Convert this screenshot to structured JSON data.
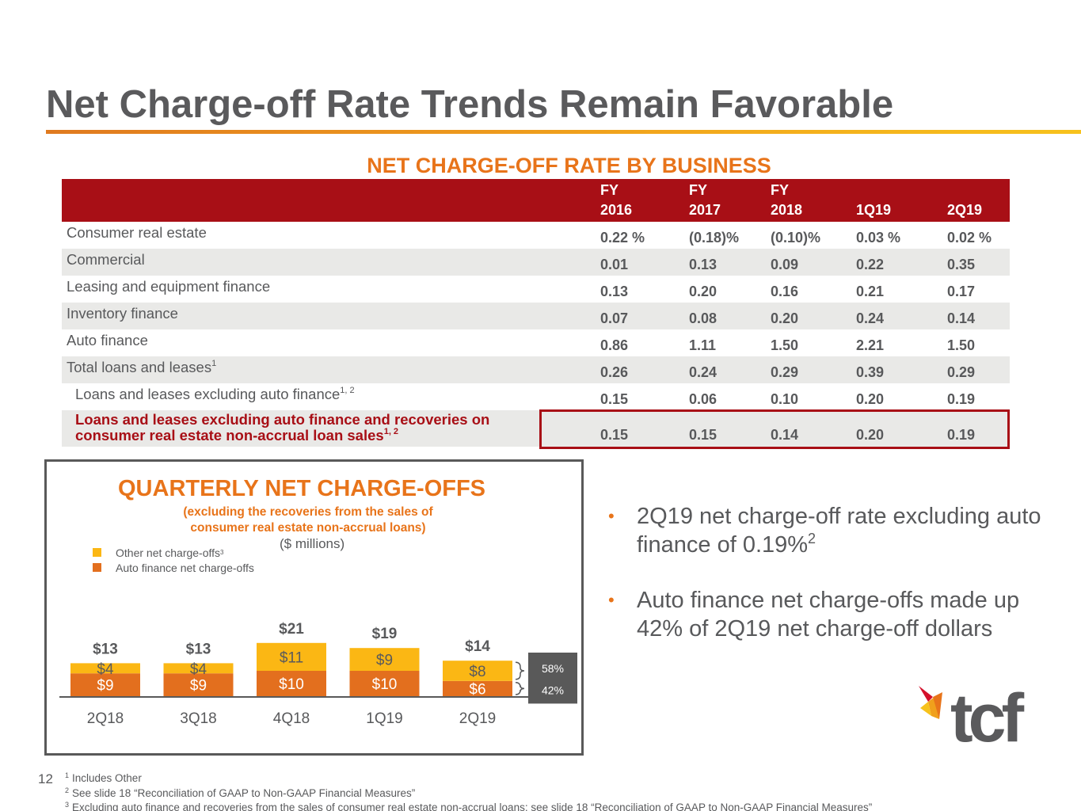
{
  "slide": {
    "title": "Net Charge-off Rate Trends Remain Favorable",
    "page_number": "12"
  },
  "table": {
    "heading": "NET CHARGE-OFF RATE BY BUSINESS",
    "columns": [
      {
        "top": "FY",
        "bottom": "2016"
      },
      {
        "top": "FY",
        "bottom": "2017"
      },
      {
        "top": "FY",
        "bottom": "2018"
      },
      {
        "top": "",
        "bottom": "1Q19"
      },
      {
        "top": "",
        "bottom": "2Q19"
      }
    ],
    "rows": [
      {
        "label": "Consumer real estate",
        "sup": "",
        "values": [
          "0.22 %",
          "(0.18)%",
          "(0.10)%",
          "0.03 %",
          "0.02 %"
        ]
      },
      {
        "label": "Commercial",
        "sup": "",
        "values": [
          "0.01",
          "0.13",
          "0.09",
          "0.22",
          "0.35"
        ]
      },
      {
        "label": "Leasing and equipment finance",
        "sup": "",
        "values": [
          "0.13",
          "0.20",
          "0.16",
          "0.21",
          "0.17"
        ]
      },
      {
        "label": "Inventory finance",
        "sup": "",
        "values": [
          "0.07",
          "0.08",
          "0.20",
          "0.24",
          "0.14"
        ]
      },
      {
        "label": "Auto finance",
        "sup": "",
        "values": [
          "0.86",
          "1.11",
          "1.50",
          "2.21",
          "1.50"
        ]
      },
      {
        "label": "Total loans and leases",
        "sup": "1",
        "values": [
          "0.26",
          "0.24",
          "0.29",
          "0.39",
          "0.29"
        ]
      },
      {
        "label": "Loans and leases excluding auto finance",
        "sup": "1, 2",
        "values": [
          "0.15",
          "0.06",
          "0.10",
          "0.20",
          "0.19"
        ]
      }
    ],
    "highlight_row": {
      "label_line1": "Loans and leases excluding auto finance and recoveries on",
      "label_line2": "consumer real estate non-accrual loan sales",
      "sup": "1, 2",
      "values": [
        "0.15",
        "0.15",
        "0.14",
        "0.20",
        "0.19"
      ]
    }
  },
  "chart": {
    "title": "QUARTERLY NET CHARGE-OFFS",
    "subtitle_line1": "(excluding the recoveries from the sales of",
    "subtitle_line2": "consumer real estate non-accrual loans)",
    "units": "($ millions)",
    "legend": [
      {
        "label": "Other net charge-offs",
        "sup": "3",
        "color": "#fbb714"
      },
      {
        "label": "Auto finance net charge-offs",
        "color": "#e36f1e"
      }
    ],
    "share_labels": {
      "other": "58%",
      "auto": "42%"
    }
  },
  "chart_data": {
    "type": "bar",
    "stacked": true,
    "title": "QUARTERLY NET CHARGE-OFFS",
    "ylabel": "($ millions)",
    "categories": [
      "2Q18",
      "3Q18",
      "4Q18",
      "1Q19",
      "2Q19"
    ],
    "series": [
      {
        "name": "Auto finance net charge-offs",
        "values": [
          9,
          9,
          10,
          10,
          6
        ],
        "labels": [
          "$9",
          "$9",
          "$10",
          "$10",
          "$6"
        ],
        "color": "#e36f1e"
      },
      {
        "name": "Other net charge-offs",
        "values": [
          4,
          4,
          11,
          9,
          8
        ],
        "labels": [
          "$4",
          "$4",
          "$11",
          "$9",
          "$8"
        ],
        "color": "#fbb714"
      }
    ],
    "totals": [
      13,
      13,
      21,
      19,
      14
    ],
    "total_labels": [
      "$13",
      "$13",
      "$21",
      "$19",
      "$14"
    ],
    "ylim": [
      0,
      21
    ]
  },
  "bullets": [
    {
      "text": "2Q19 net charge-off rate excluding auto finance of 0.19%",
      "sup": "2"
    },
    {
      "text": "Auto finance net charge-offs made up 42% of 2Q19 net charge-off dollars",
      "sup": ""
    }
  ],
  "logo": {
    "text": "tcf"
  },
  "footnotes": [
    {
      "num": "1",
      "text": "Includes Other"
    },
    {
      "num": "2",
      "text": "See slide 18 “Reconciliation of GAAP to Non-GAAP Financial Measures”"
    },
    {
      "num": "3",
      "text": "Excluding auto finance and recoveries from the sales of consumer real estate non-accrual loans; see slide 18 “Reconciliation of GAAP to Non-GAAP Financial Measures”"
    }
  ],
  "colors": {
    "brand_red": "#a80f16",
    "brand_orange": "#e8741a",
    "bar_yellow": "#fbb714",
    "bar_orange": "#e36f1e",
    "text_gray": "#58595b"
  }
}
